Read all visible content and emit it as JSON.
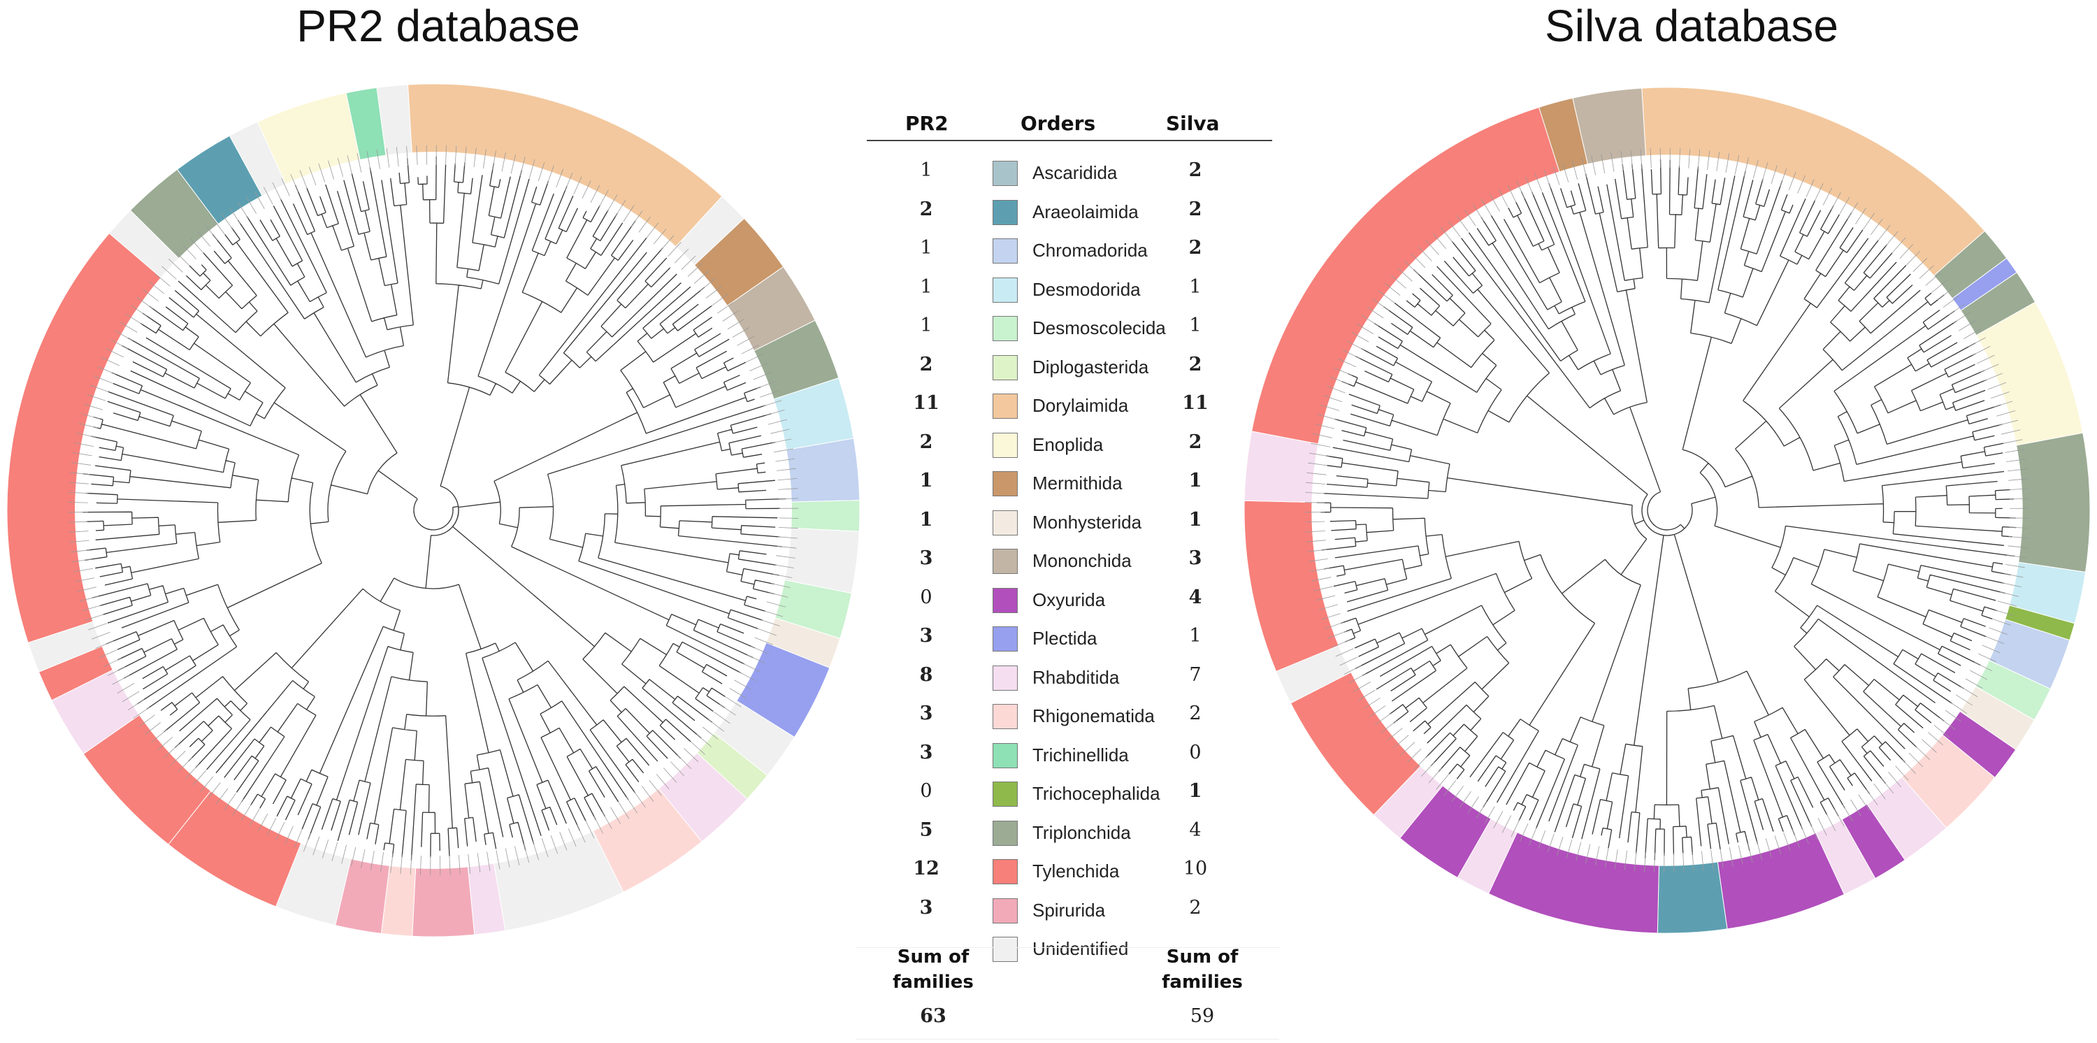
{
  "titles": {
    "left": "PR2 database",
    "right": "Silva database"
  },
  "legend": {
    "header_pr2": "PR2",
    "header_orders": "Orders",
    "header_silva": "Silva",
    "rows": [
      {
        "order": "Ascaridida",
        "pr2": "1",
        "pr2_bold": false,
        "silva": "2",
        "silva_bold": true,
        "color": "#a9c3cb"
      },
      {
        "order": "Araeolaimida",
        "pr2": "2",
        "pr2_bold": true,
        "silva": "2",
        "silva_bold": true,
        "color": "#5d9fb1"
      },
      {
        "order": "Chromadorida",
        "pr2": "1",
        "pr2_bold": false,
        "silva": "2",
        "silva_bold": true,
        "color": "#c3d3f0"
      },
      {
        "order": "Desmodorida",
        "pr2": "1",
        "pr2_bold": false,
        "silva": "1",
        "silva_bold": false,
        "color": "#c9ebf3"
      },
      {
        "order": "Desmoscolecida",
        "pr2": "1",
        "pr2_bold": false,
        "silva": "1",
        "silva_bold": false,
        "color": "#c9f2cf"
      },
      {
        "order": "Diplogasterida",
        "pr2": "2",
        "pr2_bold": true,
        "silva": "2",
        "silva_bold": true,
        "color": "#dff3c9"
      },
      {
        "order": "Dorylaimida",
        "pr2": "11",
        "pr2_bold": true,
        "silva": "11",
        "silva_bold": true,
        "color": "#f3c89e"
      },
      {
        "order": "Enoplida",
        "pr2": "2",
        "pr2_bold": true,
        "silva": "2",
        "silva_bold": true,
        "color": "#fbf7d9"
      },
      {
        "order": "Mermithida",
        "pr2": "1",
        "pr2_bold": true,
        "silva": "1",
        "silva_bold": true,
        "color": "#c9976a"
      },
      {
        "order": "Monhysterida",
        "pr2": "1",
        "pr2_bold": true,
        "silva": "1",
        "silva_bold": true,
        "color": "#f3ebe1"
      },
      {
        "order": "Mononchida",
        "pr2": "3",
        "pr2_bold": true,
        "silva": "3",
        "silva_bold": true,
        "color": "#c2b5a5"
      },
      {
        "order": "Oxyurida",
        "pr2": "0",
        "pr2_bold": false,
        "silva": "4",
        "silva_bold": true,
        "color": "#b14fbc"
      },
      {
        "order": "Plectida",
        "pr2": "3",
        "pr2_bold": true,
        "silva": "1",
        "silva_bold": false,
        "color": "#96a0ef"
      },
      {
        "order": "Rhabditida",
        "pr2": "8",
        "pr2_bold": true,
        "silva": "7",
        "silva_bold": false,
        "color": "#f5def0"
      },
      {
        "order": "Rhigonematida",
        "pr2": "3",
        "pr2_bold": true,
        "silva": "2",
        "silva_bold": false,
        "color": "#fdd9d6"
      },
      {
        "order": "Trichinellida",
        "pr2": "3",
        "pr2_bold": true,
        "silva": "0",
        "silva_bold": false,
        "color": "#8ee0b5"
      },
      {
        "order": "Trichocephalida",
        "pr2": "0",
        "pr2_bold": false,
        "silva": "1",
        "silva_bold": true,
        "color": "#8fb94b"
      },
      {
        "order": "Triplonchida",
        "pr2": "5",
        "pr2_bold": true,
        "silva": "4",
        "silva_bold": false,
        "color": "#9bab94"
      },
      {
        "order": "Tylenchida",
        "pr2": "12",
        "pr2_bold": true,
        "silva": "10",
        "silva_bold": false,
        "color": "#f7807a"
      },
      {
        "order": "Spirurida",
        "pr2": "3",
        "pr2_bold": true,
        "silva": "2",
        "silva_bold": false,
        "color": "#f2aab9"
      },
      {
        "order": "Unidentified",
        "pr2": "",
        "pr2_bold": false,
        "silva": "",
        "silva_bold": false,
        "color": "#f0f0f0"
      }
    ]
  },
  "sums": {
    "label_pr2": "Sum of families",
    "label_silva": "Sum of families",
    "value_pr2": "63",
    "value_silva": "59"
  },
  "trees": {
    "left": {
      "name": "PR2 database tree",
      "segments": [
        {
          "order": "Dorylaimida",
          "weight": 11
        },
        {
          "order": "Unidentified",
          "weight": 1
        },
        {
          "order": "Mermithida",
          "weight": 2
        },
        {
          "order": "Mononchida",
          "weight": 2
        },
        {
          "order": "Triplonchida",
          "weight": 2
        },
        {
          "order": "Desmodorida",
          "weight": 2
        },
        {
          "order": "Chromadorida",
          "weight": 2
        },
        {
          "order": "Desmoscolecida",
          "weight": 1
        },
        {
          "order": "Unidentified",
          "weight": 2
        },
        {
          "order": "Desmoscolecida",
          "weight": 1.5
        },
        {
          "order": "Monhysterida",
          "weight": 1
        },
        {
          "order": "Plectida",
          "weight": 2.5
        },
        {
          "order": "Unidentified",
          "weight": 1.5
        },
        {
          "order": "Diplogasterida",
          "weight": 1
        },
        {
          "order": "Rhabditida",
          "weight": 2
        },
        {
          "order": "Rhigonematida",
          "weight": 3
        },
        {
          "order": "Unidentified",
          "weight": 4
        },
        {
          "order": "Rhabditida",
          "weight": 1
        },
        {
          "order": "Spirurida",
          "weight": 2
        },
        {
          "order": "Rhigonematida",
          "weight": 1
        },
        {
          "order": "Spirurida",
          "weight": 1.5
        },
        {
          "order": "Unidentified",
          "weight": 2
        },
        {
          "order": "Tylenchida",
          "weight": 4
        },
        {
          "order": "Tylenchida",
          "weight": 4
        },
        {
          "order": "Rhabditida",
          "weight": 2
        },
        {
          "order": "Tylenchida",
          "weight": 1
        },
        {
          "order": "Unidentified",
          "weight": 1
        },
        {
          "order": "Tylenchida",
          "weight": 14
        },
        {
          "order": "Unidentified",
          "weight": 1
        },
        {
          "order": "Triplonchida",
          "weight": 2
        },
        {
          "order": "Araeolaimida",
          "weight": 2
        },
        {
          "order": "Unidentified",
          "weight": 1
        },
        {
          "order": "Enoplida",
          "weight": 3
        },
        {
          "order": "Trichinellida",
          "weight": 1
        },
        {
          "order": "Unidentified",
          "weight": 1
        }
      ]
    },
    "right": {
      "name": "Silva database tree",
      "segments": [
        {
          "order": "Dorylaimida",
          "weight": 11
        },
        {
          "order": "Triplonchida",
          "weight": 1
        },
        {
          "order": "Plectida",
          "weight": 0.5
        },
        {
          "order": "Triplonchida",
          "weight": 1
        },
        {
          "order": "Enoplida",
          "weight": 4
        },
        {
          "order": "Triplonchida",
          "weight": 4
        },
        {
          "order": "Desmodorida",
          "weight": 1.5
        },
        {
          "order": "Trichocephalida",
          "weight": 0.5
        },
        {
          "order": "Chromadorida",
          "weight": 1.5
        },
        {
          "order": "Desmoscolecida",
          "weight": 1
        },
        {
          "order": "Monhysterida",
          "weight": 1
        },
        {
          "order": "Oxyurida",
          "weight": 1
        },
        {
          "order": "Rhigonematida",
          "weight": 2
        },
        {
          "order": "Rhabditida",
          "weight": 1.5
        },
        {
          "order": "Oxyurida",
          "weight": 1
        },
        {
          "order": "Rhabditida",
          "weight": 1
        },
        {
          "order": "Oxyurida",
          "weight": 3.5
        },
        {
          "order": "Araeolaimida",
          "weight": 2
        },
        {
          "order": "Oxyurida",
          "weight": 5
        },
        {
          "order": "Rhabditida",
          "weight": 1
        },
        {
          "order": "Oxyurida",
          "weight": 2
        },
        {
          "order": "Rhabditida",
          "weight": 1
        },
        {
          "order": "Tylenchida",
          "weight": 4
        },
        {
          "order": "Unidentified",
          "weight": 1
        },
        {
          "order": "Tylenchida",
          "weight": 5
        },
        {
          "order": "Rhabditida",
          "weight": 2
        },
        {
          "order": "Tylenchida",
          "weight": 13
        },
        {
          "order": "Mermithida",
          "weight": 1
        },
        {
          "order": "Mononchida",
          "weight": 2
        }
      ]
    }
  }
}
